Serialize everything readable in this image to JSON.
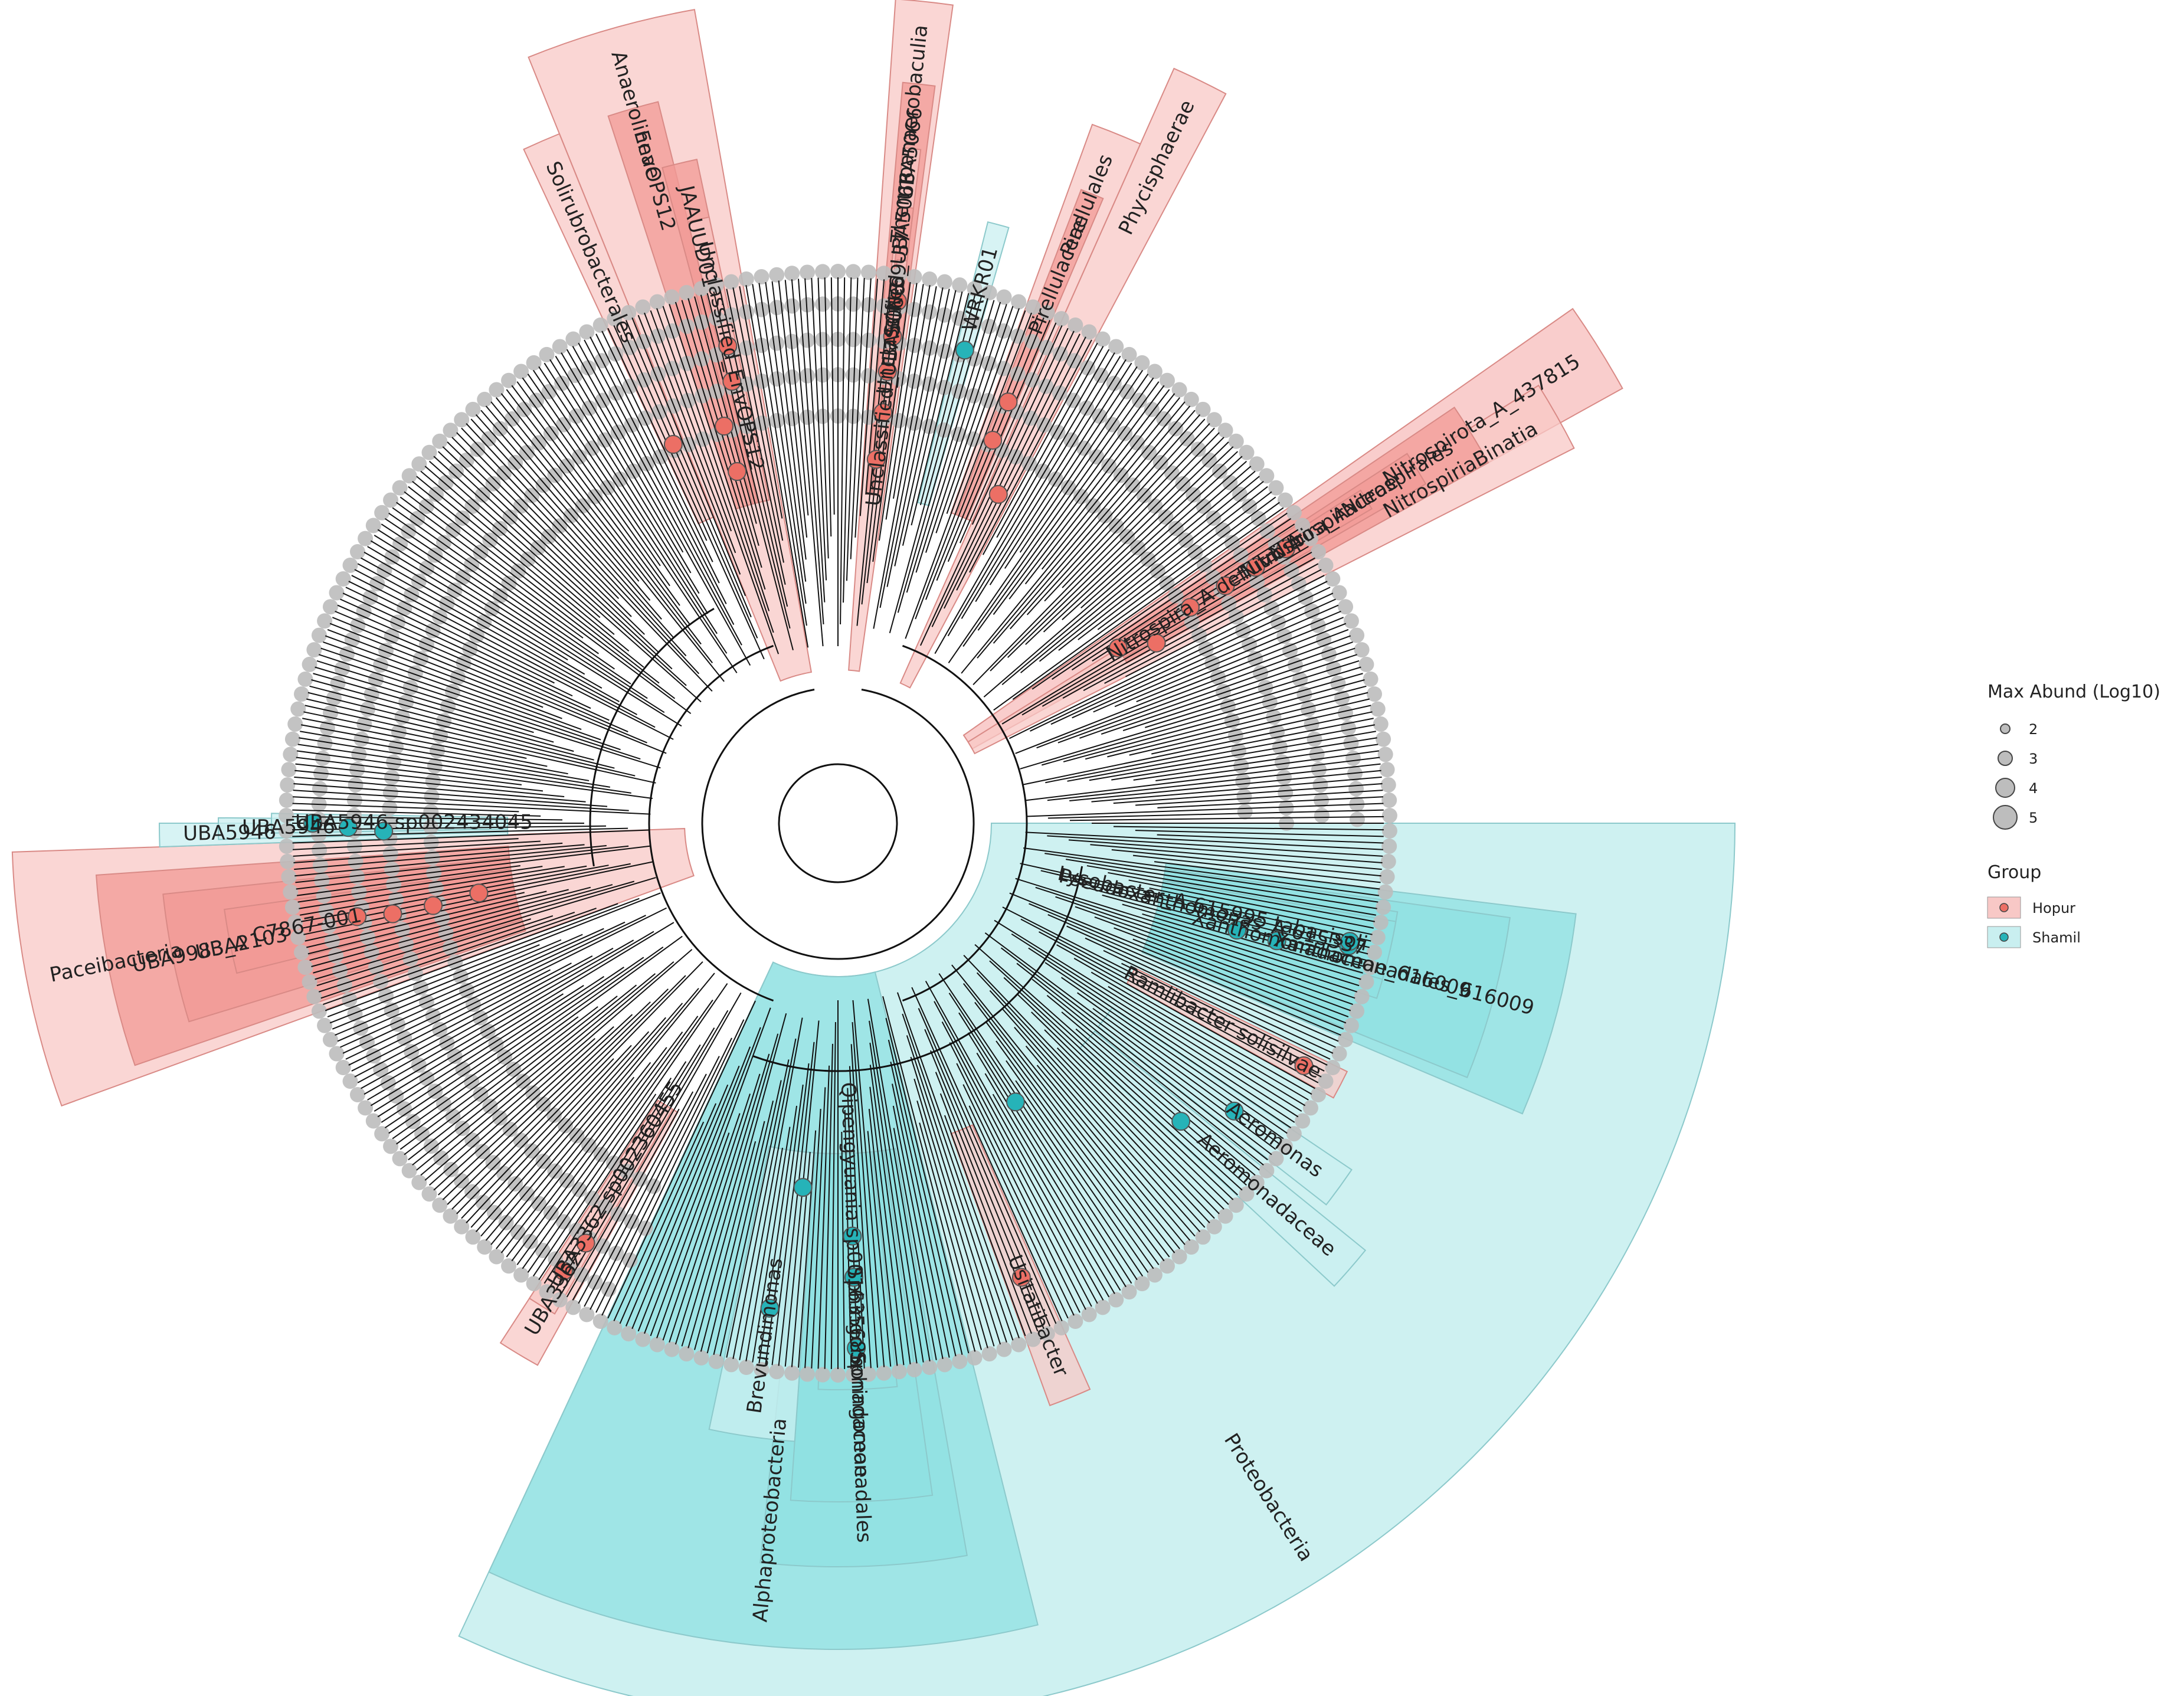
{
  "colors": {
    "background": "#ffffff",
    "hopur_fill": "#f8c8c6",
    "hopur_strong": "#f29a95",
    "hopur_node": "#ec6f65",
    "shamil_fill": "#c9eff0",
    "shamil_strong": "#8fe0e2",
    "shamil_node": "#26b3b8",
    "gray_node": "#bdbdbd",
    "branch": "#111111",
    "label": "#222222"
  },
  "legend": {
    "size_title": "Max Abund (Log10)",
    "sizes": [
      {
        "label": "2",
        "value": 2
      },
      {
        "label": "3",
        "value": 3
      },
      {
        "label": "4",
        "value": 4
      },
      {
        "label": "5",
        "value": 5
      }
    ],
    "group_title": "Group",
    "groups": [
      {
        "label": "Hopur",
        "color": "#ec6f65"
      },
      {
        "label": "Shamil",
        "color": "#26b3b8"
      }
    ]
  },
  "clades": [
    {
      "label": "Proteobacteria",
      "group": "Shamil",
      "rank": "phylum",
      "from": 90,
      "to": 205,
      "strong": false
    },
    {
      "label": "Alphaproteobacteria",
      "group": "Shamil",
      "rank": "class",
      "from": 166,
      "to": 205,
      "strong": true
    },
    {
      "label": "Sphingomonadales",
      "group": "Shamil",
      "rank": "order",
      "from": 170,
      "to": 186,
      "strong": true
    },
    {
      "label": "Sphingomonadaceae",
      "group": "Shamil",
      "rank": "family",
      "from": 172,
      "to": 184,
      "strong": true
    },
    {
      "label": "Qipengyuania sp001635685",
      "group": "Shamil",
      "rank": "species",
      "from": 174,
      "to": 182,
      "strong": true
    },
    {
      "label": "Brevundimonas",
      "group": "Shamil",
      "rank": "genus",
      "from": 184,
      "to": 192,
      "strong": false
    },
    {
      "label": "Usitatibacter",
      "group": "Hopur",
      "rank": "genus",
      "from": 156,
      "to": 160,
      "strong": false
    },
    {
      "label": "Xanthomonadales_616009",
      "group": "Shamil",
      "rank": "order",
      "from": 97,
      "to": 113,
      "strong": true
    },
    {
      "label": "Xanthomonadaceae_616009",
      "group": "Shamil",
      "rank": "family",
      "from": 98,
      "to": 112,
      "strong": true
    },
    {
      "label": "Pseudoxanthomonas_A 615337",
      "group": "Shamil",
      "rank": "species",
      "from": 99,
      "to": 108,
      "strong": true
    },
    {
      "label": "Lysobacter_A 615995 tabacisoli",
      "group": "Shamil",
      "rank": "species",
      "from": 100,
      "to": 106,
      "strong": true
    },
    {
      "label": "Aeromonadaceae",
      "group": "Shamil",
      "rank": "family",
      "from": 129,
      "to": 133,
      "strong": false
    },
    {
      "label": "Aeromonas",
      "group": "Shamil",
      "rank": "genus",
      "from": 124,
      "to": 128,
      "strong": false
    },
    {
      "label": "Ramlibacter solísilvae",
      "group": "Hopur",
      "rank": "species",
      "from": 116,
      "to": 119,
      "strong": false
    },
    {
      "label": "UBA3362 sp002360455",
      "group": "Hopur",
      "rank": "species",
      "from": 210,
      "to": 213,
      "strong": false
    },
    {
      "label": "UBA3362",
      "group": "Hopur",
      "rank": "genus",
      "from": 209,
      "to": 213,
      "strong": false
    },
    {
      "label": "Paceibacteria",
      "group": "Hopur",
      "rank": "class",
      "from": 250,
      "to": 268,
      "strong": false
    },
    {
      "label": "UBA9983_A",
      "group": "Hopur",
      "rank": "order",
      "from": 251,
      "to": 266,
      "strong": true
    },
    {
      "label": "UBA2103",
      "group": "Hopur",
      "rank": "family",
      "from": 253,
      "to": 264,
      "strong": true
    },
    {
      "label": "C7867-001",
      "group": "Hopur",
      "rank": "genus",
      "from": 256,
      "to": 262,
      "strong": true
    },
    {
      "label": "UBA5946 sp002434045",
      "group": "Shamil",
      "rank": "species",
      "from": 269,
      "to": 271,
      "strong": false
    },
    {
      "label": "UBA5946",
      "group": "Shamil",
      "rank": "genus",
      "from": 268.5,
      "to": 270.5,
      "strong": false
    },
    {
      "label": "UBA5946",
      "group": "Shamil",
      "rank": "family",
      "from": 268,
      "to": 270,
      "strong": false
    },
    {
      "label": "Solirubrobacterales",
      "group": "Hopur",
      "rank": "order",
      "from": 335,
      "to": 338,
      "strong": false
    },
    {
      "label": "Anaerolineae",
      "group": "Hopur",
      "rank": "class",
      "from": 338,
      "to": 350,
      "strong": false
    },
    {
      "label": "EnvOPS12",
      "group": "Hopur",
      "rank": "order",
      "from": 342,
      "to": 346,
      "strong": true
    },
    {
      "label": "JAAUUD01",
      "group": "Hopur",
      "rank": "family",
      "from": 345,
      "to": 348,
      "strong": true
    },
    {
      "label": "Unclassified_EnvOPS12",
      "group": "Hopur",
      "rank": "genus",
      "from": 346,
      "to": 348,
      "strong": false
    },
    {
      "label": "Thermoanaerobaculia",
      "group": "Hopur",
      "rank": "class",
      "from": 4,
      "to": 8,
      "strong": false
    },
    {
      "label": "UBA5066",
      "group": "Hopur",
      "rank": "order",
      "from": 5,
      "to": 7.5,
      "strong": true
    },
    {
      "label": "Unclassified_UBA5066",
      "group": "Hopur",
      "rank": "family",
      "from": 5.5,
      "to": 7,
      "strong": false
    },
    {
      "label": "SCN-69-37",
      "group": "Hopur",
      "rank": "genus",
      "from": 5.8,
      "to": 7,
      "strong": true
    },
    {
      "label": "Unclassified_UBA5066",
      "group": "Hopur",
      "rank": "species",
      "from": 6,
      "to": 7,
      "strong": false
    },
    {
      "label": "WRKR01",
      "group": "Shamil",
      "rank": "genus",
      "from": 14,
      "to": 16,
      "strong": false
    },
    {
      "label": "Phycisphaerae",
      "group": "Hopur",
      "rank": "class",
      "from": 24,
      "to": 28,
      "strong": false
    },
    {
      "label": "Pirellulales",
      "group": "Hopur",
      "rank": "order",
      "from": 20,
      "to": 24,
      "strong": false
    },
    {
      "label": "Pirellulaceae",
      "group": "Hopur",
      "rank": "family",
      "from": 21,
      "to": 23,
      "strong": true
    },
    {
      "label": "Nitrospirota_A_437815",
      "group": "Hopur",
      "rank": "phylum",
      "from": 55,
      "to": 61,
      "strong": false
    },
    {
      "label": "NitrospiriaBinatia",
      "group": "Hopur",
      "rank": "class",
      "from": 58,
      "to": 63,
      "strong": false
    },
    {
      "label": "Nitrospirales",
      "group": "Hopur",
      "rank": "order",
      "from": 56,
      "to": 61,
      "strong": true
    },
    {
      "label": "Nitrospiraceae",
      "group": "Hopur",
      "rank": "family",
      "from": 57,
      "to": 60,
      "strong": true
    },
    {
      "label": "Nitrospira_A",
      "group": "Hopur",
      "rank": "genus",
      "from": 57.5,
      "to": 59.5,
      "strong": true
    },
    {
      "label": "Nitrospira_A defluvii_A",
      "group": "Hopur",
      "rank": "species",
      "from": 58,
      "to": 59,
      "strong": true
    }
  ]
}
